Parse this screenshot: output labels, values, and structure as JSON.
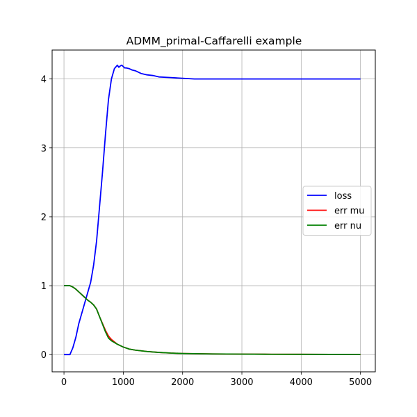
{
  "chart_data": {
    "type": "line",
    "title": "ADMM_primal-Caffarelli example",
    "xlabel": "",
    "ylabel": "",
    "xlim": [
      -200,
      5250
    ],
    "ylim": [
      -0.25,
      4.42
    ],
    "xticks": [
      0,
      1000,
      2000,
      3000,
      4000,
      5000
    ],
    "xtick_labels": [
      "0",
      "1000",
      "2000",
      "3000",
      "4000",
      "5000"
    ],
    "yticks": [
      0,
      1,
      2,
      3,
      4
    ],
    "ytick_labels": [
      "0",
      "1",
      "2",
      "3",
      "4"
    ],
    "grid": true,
    "legend_position": "center-right",
    "series": [
      {
        "name": "loss",
        "color": "#0000ff",
        "x": [
          0,
          50,
          100,
          150,
          200,
          250,
          300,
          350,
          400,
          450,
          500,
          550,
          600,
          650,
          700,
          750,
          800,
          850,
          900,
          925,
          950,
          975,
          1000,
          1025,
          1050,
          1100,
          1150,
          1200,
          1250,
          1300,
          1400,
          1500,
          1600,
          1800,
          2000,
          2200,
          2500,
          3000,
          3500,
          4000,
          4500,
          5000
        ],
        "y": [
          0.0,
          0.0,
          0.0,
          0.1,
          0.25,
          0.45,
          0.6,
          0.75,
          0.9,
          1.05,
          1.3,
          1.65,
          2.15,
          2.65,
          3.2,
          3.7,
          4.0,
          4.15,
          4.2,
          4.17,
          4.19,
          4.2,
          4.18,
          4.16,
          4.16,
          4.15,
          4.13,
          4.12,
          4.1,
          4.08,
          4.06,
          4.05,
          4.03,
          4.02,
          4.01,
          4.0,
          4.0,
          4.0,
          4.0,
          4.0,
          4.0,
          4.0
        ]
      },
      {
        "name": "err mu",
        "color": "#ff0000",
        "x": [
          0,
          50,
          100,
          150,
          200,
          250,
          300,
          350,
          400,
          450,
          500,
          550,
          600,
          650,
          700,
          750,
          800,
          900,
          1000,
          1100,
          1200,
          1300,
          1400,
          1500,
          1600,
          1800,
          2000,
          2500,
          3000,
          3500,
          4000,
          4500,
          5000
        ],
        "y": [
          1.0,
          1.0,
          1.0,
          0.98,
          0.95,
          0.91,
          0.87,
          0.83,
          0.79,
          0.76,
          0.72,
          0.66,
          0.55,
          0.45,
          0.35,
          0.27,
          0.22,
          0.15,
          0.11,
          0.08,
          0.065,
          0.055,
          0.045,
          0.038,
          0.032,
          0.022,
          0.016,
          0.01,
          0.007,
          0.005,
          0.004,
          0.003,
          0.002
        ]
      },
      {
        "name": "err nu",
        "color": "#008000",
        "x": [
          0,
          50,
          100,
          150,
          200,
          250,
          300,
          350,
          400,
          450,
          500,
          550,
          600,
          650,
          700,
          750,
          800,
          900,
          1000,
          1100,
          1200,
          1300,
          1400,
          1500,
          1600,
          1800,
          2000,
          2500,
          3000,
          3500,
          4000,
          4500,
          5000
        ],
        "y": [
          1.0,
          1.0,
          1.0,
          0.98,
          0.95,
          0.91,
          0.87,
          0.83,
          0.79,
          0.76,
          0.72,
          0.66,
          0.55,
          0.44,
          0.33,
          0.24,
          0.2,
          0.15,
          0.11,
          0.08,
          0.065,
          0.055,
          0.045,
          0.038,
          0.032,
          0.022,
          0.016,
          0.01,
          0.007,
          0.005,
          0.004,
          0.003,
          0.002
        ]
      }
    ]
  }
}
